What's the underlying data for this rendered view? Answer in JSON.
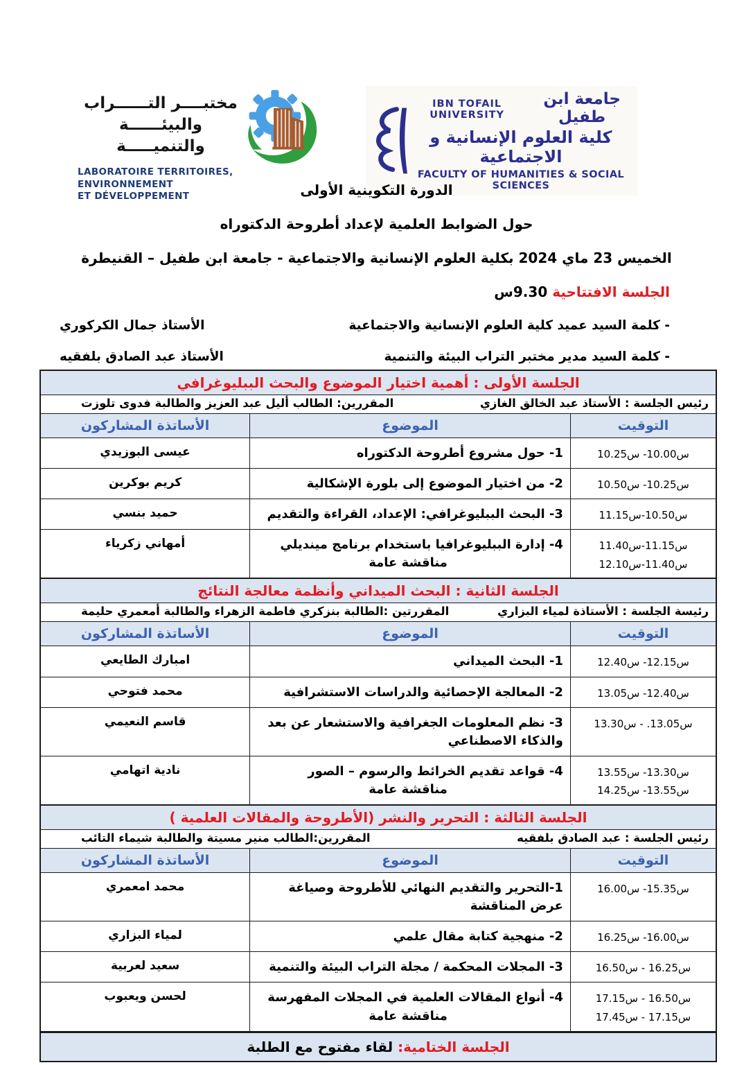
{
  "logos": {
    "left": {
      "arabic_lines": [
        "مختبــــر التــــــراب",
        "والبيئــــــة والتنميـــــة"
      ],
      "french_lines": [
        "LABORATOIRE TERRITOIRES,",
        "ENVIRONNEMENT",
        "ET DÉVELOPPEMENT"
      ]
    },
    "right": {
      "line1_en": "IBN TOFAIL UNIVERSITY",
      "line1_ar": "جامعة ابن طفيل",
      "line2_ar": "كلية العلوم الإنسانية و الاجتماعية",
      "line3_en": "FACULTY OF HUMANITIES & SOCIAL SCIENCES"
    }
  },
  "titles": {
    "line1": "الدورة التكوينية الأولى",
    "line2": "حول الضوابط العلمية لإعداد أطروحة الدكتوراه",
    "line3": "الخميس 23 ماي 2024 بكلية العلوم الإنسانية والاجتماعية - جامعة ابن طفيل – القنيطرة"
  },
  "opening": {
    "session_label": "الجلسة الافتتاحية",
    "session_time": "9.30س",
    "items": [
      {
        "text": "- كلمة السيد عميد كلية العلوم الإنسانية والاجتماعية",
        "speaker": "الأستاذ جمال الكركوري"
      },
      {
        "text": "- كلمة السيد مدير مختبر التراب البيئة والتنمية",
        "speaker": "الأستاذ عبد الصادق بلفقيه"
      }
    ]
  },
  "table": {
    "headers": {
      "time": "التوقيت",
      "topic": "الموضوع",
      "professors": "الأساتذة المشاركون"
    }
  },
  "sessions": [
    {
      "title": "الجلسة  الأولى : أهمية اختيار الموضوع والبحث الببليوغرافي",
      "chair": "رئيس الجلسة : الأستاذ عبد الخالق الغازي",
      "rapporteurs": "المقررين: الطالب أليل عبد العزيز والطالبة  فدوى تلوزت",
      "rows": [
        {
          "time": [
            "س10.00- س10.25"
          ],
          "topic": "1- حول مشروع أطروحة الدكتوراه",
          "topic2": "",
          "prof": "عيسى البوزيدي"
        },
        {
          "time": [
            "س10.25- س10.50"
          ],
          "topic": "2- من اختيار الموضوع إلى بلورة الإشكالية",
          "topic2": "",
          "prof": "كريم بوكرين"
        },
        {
          "time": [
            "س10.50-س11.15"
          ],
          "topic": "3- البحث الببليوغرافي: الإعداد، القراءة والتقديم",
          "topic2": "",
          "prof": "حميد بنسي"
        },
        {
          "time": [
            "س11.15-س11.40",
            "س11.40-س12.10"
          ],
          "topic": "4- إدارة الببليوغرافيا باستخدام برنامج مينديلي",
          "topic2": "مناقشة عامة",
          "prof": "أمهاني زكرياء"
        }
      ]
    },
    {
      "title": "الجلسة  الثانية : البحث الميداني وأنظمة معالجة النتائج",
      "chair": "رئيسة الجلسة : الأستاذة لمياء البزاري",
      "rapporteurs": "المقررتين :الطالبة بنزكري فاطمة الزهراء والطالبة أمعمري حليمة",
      "rows": [
        {
          "time": [
            "س12.15- س12.40"
          ],
          "topic": "1- البحث الميداني",
          "topic2": "",
          "prof": "امبارك الطايعي"
        },
        {
          "time": [
            "س12.40- س13.05"
          ],
          "topic": "2- المعالجة الإحصائية والدراسات الاستشرافية",
          "topic2": "",
          "prof": "محمد فتوحي"
        },
        {
          "time": [
            "س13.05. - س13.30"
          ],
          "topic": "3- نظم المعلومات الجغرافية والاستشعار عن بعد والذكاء الاصطناعي",
          "topic2": "",
          "prof": "قاسم النعيمي"
        },
        {
          "time": [
            "س13.30- س13.55",
            "س13.55- س14.25"
          ],
          "topic": "4- قواعد تقديم الخرائط والرسوم – الصور",
          "topic2": "مناقشة عامة",
          "prof": "نادية اتهامي"
        }
      ]
    },
    {
      "title": "الجلسة الثالثة : التحرير والنشر (الأطروحة والمقالات العلمية )",
      "chair": "رئيس الجلسة : عبد الصادق بلفقيه",
      "rapporteurs": "المقررين:الطالب منير مسيتة والطالبة شيماء التائب",
      "rows": [
        {
          "time": [
            "س15.35- س16.00"
          ],
          "topic": "1-التحرير والتقديم النهائي للأطروحة وصياغة عرض المناقشة",
          "topic2": "",
          "prof": "محمد امعمري"
        },
        {
          "time": [
            "س16.00- س16.25"
          ],
          "topic": "2- منهجية كتابة مقال علمي",
          "topic2": "",
          "prof": "لمياء البزاري"
        },
        {
          "time": [
            "س16.25 - س16.50"
          ],
          "topic": "3- المجلات المحكمة   / مجلة التراب البيئة والتنمية",
          "topic2": "",
          "prof": "سعيد لعربية"
        },
        {
          "time": [
            "س16.50 - س17.15",
            "س17.15 - س17.45"
          ],
          "topic": "4- أنواع المقالات العلمية في المجلات المفهرسة",
          "topic2": "مناقشة عامة",
          "prof": "لحسن ويعبوب"
        }
      ]
    }
  ],
  "closing": {
    "red": "الجلسة الختامية:",
    "black": " لقاء مفتوح مع الطلبة"
  },
  "colors": {
    "accent_red": "#e11b22",
    "header_blue": "#3a62ae",
    "band_bg": "#dbe5f1",
    "logo_navy": "#2c2f8e",
    "french_navy": "#1e3c78",
    "logo_green": "#2f9e41",
    "logo_blue": "#4aa0e4",
    "building_brown": "#a65a2e",
    "border_dark": "#1a1a1a"
  }
}
